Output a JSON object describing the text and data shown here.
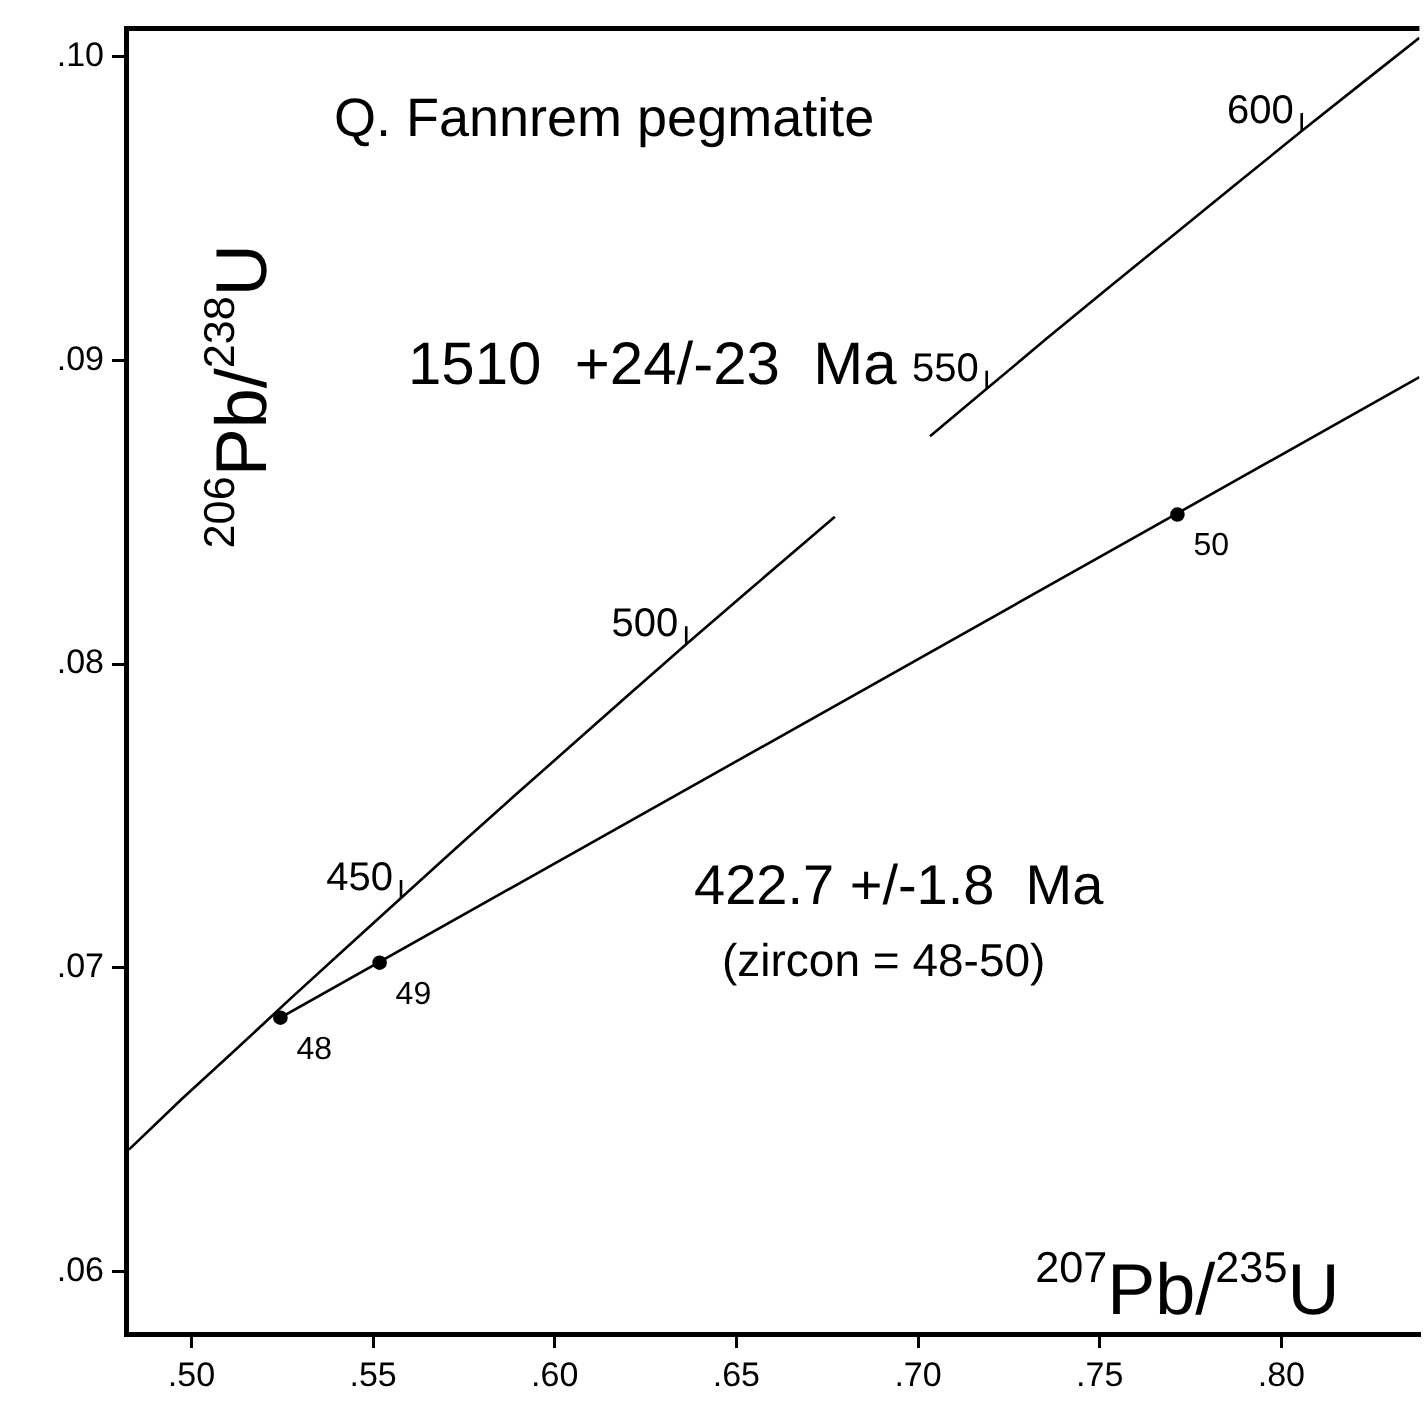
{
  "chart_data": {
    "type": "line",
    "title": "Q. Fannrem pegmatite",
    "xlabel": "$^{207}$Pb/$^{235}$U",
    "ylabel": "$^{206}$Pb/$^{238}$U",
    "xlim": [
      0.482,
      0.838
    ],
    "ylim": [
      0.05795,
      0.10092
    ],
    "xticks": [
      {
        "value": 0.5,
        "label": ".50"
      },
      {
        "value": 0.55,
        "label": ".55"
      },
      {
        "value": 0.6,
        "label": ".60"
      },
      {
        "value": 0.65,
        "label": ".65"
      },
      {
        "value": 0.7,
        "label": ".70"
      },
      {
        "value": 0.75,
        "label": ".75"
      },
      {
        "value": 0.8,
        "label": ".80"
      }
    ],
    "yticks": [
      {
        "value": 0.06,
        "label": ".06"
      },
      {
        "value": 0.07,
        "label": ".07"
      },
      {
        "value": 0.08,
        "label": ".08"
      },
      {
        "value": 0.09,
        "label": ".09"
      },
      {
        "value": 0.1,
        "label": ".10"
      }
    ],
    "grid": false,
    "legend": false,
    "series": [
      {
        "color": "#000000",
        "marker": "none",
        "x": [
          0.4828,
          0.4975,
          0.5123,
          0.5272,
          0.5424,
          0.5577,
          0.5731,
          0.5886,
          0.6044,
          0.6202,
          0.6362,
          0.6525,
          0.6689,
          0.6771,
          0.69,
          0.7033,
          0.7189,
          0.7359,
          0.7531,
          0.7705,
          0.788,
          0.8056,
          0.8236,
          0.838
        ],
        "values": [
          0.06402,
          0.0657,
          0.06732,
          0.06898,
          0.07064,
          0.0723,
          0.07397,
          0.07563,
          0.0773,
          0.07897,
          0.08065,
          0.08233,
          0.08401,
          0.08485,
          null,
          0.0875,
          0.08906,
          0.09076,
          0.09245,
          0.09414,
          0.09584,
          0.09754,
          0.09925,
          0.10061
        ]
      },
      {
        "color": "#000000",
        "marker": "none",
        "x": [
          0.5245,
          0.838
        ],
        "values": [
          0.06836,
          0.08944
        ]
      },
      {
        "type": "scatter",
        "color": "#000000",
        "marker": "circle",
        "x": [
          0.5245,
          0.5518,
          0.7714
        ],
        "values": [
          0.06836,
          0.07017,
          0.08492
        ]
      }
    ],
    "annotations": [
      {
        "text": "450",
        "x": 0.5577,
        "y": 0.0723
      },
      {
        "text": "500",
        "x": 0.6362,
        "y": 0.08065
      },
      {
        "text": "550",
        "x": 0.7189,
        "y": 0.08906
      },
      {
        "text": "600",
        "x": 0.8056,
        "y": 0.09754
      },
      {
        "text": "48",
        "x": 0.5245,
        "y": 0.06836
      },
      {
        "text": "49",
        "x": 0.5518,
        "y": 0.07017
      },
      {
        "text": "50",
        "x": 0.7714,
        "y": 0.08492
      },
      "1510  +24/-23  Ma",
      "422.7 +/-1.8  Ma",
      "(zircon = 48-50)"
    ]
  }
}
